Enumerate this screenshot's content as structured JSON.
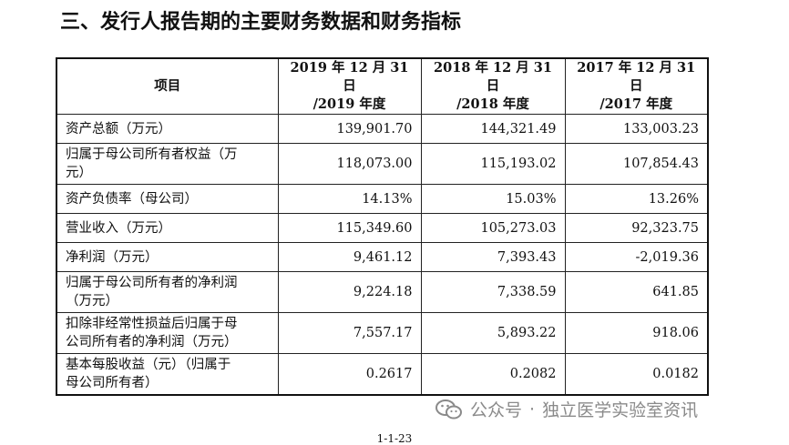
{
  "heading": "三、发行人报告期的主要财务数据和财务指标",
  "table": {
    "headers": [
      [
        "项目"
      ],
      [
        "2019 年 12 月 31 日",
        "/2019 年度"
      ],
      [
        "2018 年 12 月 31 日",
        "/2018 年度"
      ],
      [
        "2017 年 12 月 31 日",
        "/2017 年度"
      ]
    ],
    "rows": [
      {
        "label": [
          "资产总额（万元）"
        ],
        "values": [
          "139,901.70",
          "144,321.49",
          "133,003.23"
        ]
      },
      {
        "label": [
          "归属于母公司所有者权益（万",
          "元）"
        ],
        "values": [
          "118,073.00",
          "115,193.02",
          "107,854.43"
        ]
      },
      {
        "label": [
          "资产负债率（母公司）"
        ],
        "values": [
          "14.13%",
          "15.03%",
          "13.26%"
        ]
      },
      {
        "label": [
          "营业收入（万元）"
        ],
        "values": [
          "115,349.60",
          "105,273.03",
          "92,323.75"
        ]
      },
      {
        "label": [
          "净利润（万元）"
        ],
        "values": [
          "9,461.12",
          "7,393.43",
          "-2,019.36"
        ]
      },
      {
        "label": [
          "归属于母公司所有者的净利润",
          "（万元）"
        ],
        "values": [
          "9,224.18",
          "7,338.59",
          "641.85"
        ]
      },
      {
        "label": [
          "扣除非经常性损益后归属于母",
          "公司所有者的净利润（万元）"
        ],
        "values": [
          "7,557.17",
          "5,893.22",
          "918.06"
        ]
      },
      {
        "label": [
          "基本每股收益（元）（归属于",
          "母公司所有者）"
        ],
        "values": [
          "0.2617",
          "0.2082",
          "0.0182"
        ]
      }
    ]
  },
  "watermark": {
    "account": "公众号",
    "separator": "·",
    "name": "独立医学实验室资讯"
  },
  "page_number": "1-1-23",
  "colors": {
    "text": "#111111",
    "border": "#222222",
    "watermark": "#8a8a8a"
  }
}
